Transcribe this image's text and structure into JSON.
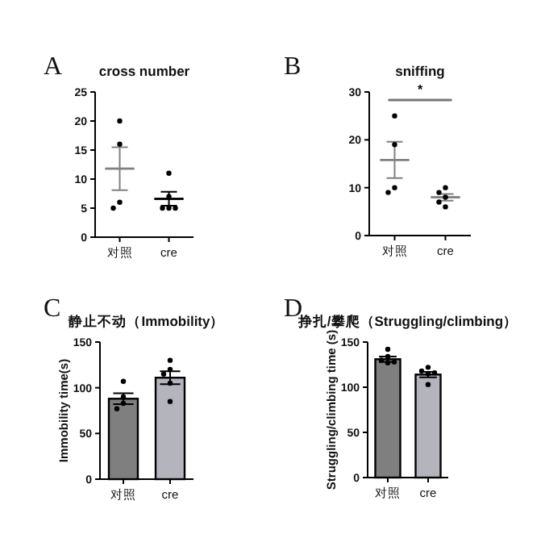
{
  "chart_data": [
    {
      "type": "scatter",
      "title": "cross number",
      "annotations": [
        "A"
      ],
      "categories": [
        "对照",
        "cre"
      ],
      "ylim": [
        0,
        25
      ],
      "yticks": [
        0,
        5,
        10,
        15,
        20,
        25
      ],
      "series": [
        {
          "type": "box",
          "colors": [
            "#808080",
            "#000000"
          ],
          "boxes": [
            {
              "low": 8.1,
              "q1": 11.8,
              "median": 11.8,
              "q3": 11.8,
              "high": 15.5
            },
            {
              "low": 5.4,
              "q1": 6.6,
              "median": 6.6,
              "q3": 6.6,
              "high": 7.8
            }
          ]
        },
        {
          "marker": "circle",
          "color": "#000000",
          "x": [
            "对照",
            "对照",
            "对照",
            "对照",
            "cre",
            "cre",
            "cre",
            "cre",
            "cre"
          ],
          "values": [
            20,
            16,
            6,
            5,
            11,
            7,
            5,
            5,
            5
          ]
        }
      ]
    },
    {
      "type": "scatter",
      "title": "sniffing",
      "annotations": [
        "B",
        "*"
      ],
      "categories": [
        "对照",
        "cre"
      ],
      "ylim": [
        0,
        30
      ],
      "yticks": [
        0,
        10,
        20,
        30
      ],
      "series": [
        {
          "type": "box",
          "colors": [
            "#808080",
            "#808080"
          ],
          "boxes": [
            {
              "low": 12,
              "q1": 15.8,
              "median": 15.8,
              "q3": 15.8,
              "high": 19.6
            },
            {
              "low": 7.3,
              "q1": 8,
              "median": 8,
              "q3": 8,
              "high": 8.7
            }
          ]
        },
        {
          "marker": "circle",
          "color": "#000000",
          "x": [
            "对照",
            "对照",
            "对照",
            "对照",
            "cre",
            "cre",
            "cre",
            "cre",
            "cre"
          ],
          "values": [
            25,
            19,
            10,
            9,
            10,
            9,
            8,
            7,
            6
          ]
        }
      ]
    },
    {
      "type": "bar",
      "title": "静止不动（Immobility）",
      "ylabel": "Immobility time(s)",
      "annotations": [
        "C"
      ],
      "categories": [
        "对照",
        "cre"
      ],
      "ylim": [
        0,
        150
      ],
      "yticks": [
        0,
        50,
        100,
        150
      ],
      "series": [
        {
          "colors": [
            "#7f7f7f",
            "#b4b4bc"
          ],
          "values": [
            88,
            111
          ],
          "errors": [
            6,
            7
          ]
        },
        {
          "type": "scatter",
          "marker": "circle",
          "color": "#000000",
          "x": [
            "对照",
            "对照",
            "对照",
            "对照",
            "cre",
            "cre",
            "cre",
            "cre",
            "cre"
          ],
          "values": [
            107,
            90,
            83,
            77,
            130,
            120,
            115,
            105,
            85
          ]
        }
      ]
    },
    {
      "type": "bar",
      "title": "挣扎/攀爬（Struggling/climbing）",
      "ylabel": "Struggling/climbing time (s)",
      "annotations": [
        "D"
      ],
      "categories": [
        "对照",
        "cre"
      ],
      "ylim": [
        0,
        150
      ],
      "yticks": [
        0,
        50,
        100,
        150
      ],
      "series": [
        {
          "colors": [
            "#7f7f7f",
            "#b4b4bc"
          ],
          "values": [
            131,
            114
          ],
          "errors": [
            3,
            3
          ]
        },
        {
          "type": "scatter",
          "marker": "circle",
          "color": "#000000",
          "x": [
            "对照",
            "对照",
            "对照",
            "对照",
            "对照",
            "cre",
            "cre",
            "cre",
            "cre",
            "cre"
          ],
          "values": [
            142,
            134,
            130,
            128,
            127,
            122,
            118,
            116,
            115,
            103
          ]
        }
      ]
    }
  ]
}
